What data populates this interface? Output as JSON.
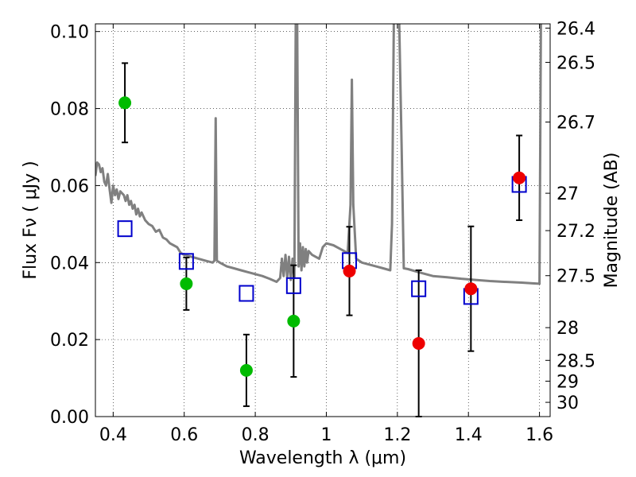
{
  "chart_data": {
    "type": "scatter",
    "xlabel": "Wavelength  λ (μm)",
    "ylabel": "Flux  Fν  ( μJy )",
    "ylabel_right": "Magnitude (AB)",
    "xlim": [
      0.35,
      1.63
    ],
    "ylim": [
      0.0,
      0.102
    ],
    "grid": true,
    "x_ticks": [
      0.4,
      0.6,
      0.8,
      1.0,
      1.2,
      1.4,
      1.6
    ],
    "x_tick_labels": [
      "0.4",
      "0.6",
      "0.8",
      "1",
      "1.2",
      "1.4",
      "1.6"
    ],
    "y_ticks": [
      0.0,
      0.02,
      0.04,
      0.06,
      0.08,
      0.1
    ],
    "y_tick_labels": [
      "0.00",
      "0.02",
      "0.04",
      "0.06",
      "0.08",
      "0.10"
    ],
    "right_ticks": [
      {
        "label": "26.4",
        "flux": 0.1009
      },
      {
        "label": "26.5",
        "flux": 0.092
      },
      {
        "label": "26.7",
        "flux": 0.0765
      },
      {
        "label": "27",
        "flux": 0.058
      },
      {
        "label": "27.2",
        "flux": 0.0483
      },
      {
        "label": "27.5",
        "flux": 0.0366
      },
      {
        "label": "28",
        "flux": 0.0231
      },
      {
        "label": "28.5",
        "flux": 0.0146
      },
      {
        "label": "29",
        "flux": 0.0092
      },
      {
        "label": "30",
        "flux": 0.0037
      }
    ],
    "series": [
      {
        "marker": "circle",
        "color": "#00bb00",
        "points": [
          {
            "x": 0.433,
            "y": 0.0815,
            "err": 0.0103
          },
          {
            "x": 0.606,
            "y": 0.0345,
            "err": 0.0068
          },
          {
            "x": 0.775,
            "y": 0.012,
            "err": 0.0093
          },
          {
            "x": 0.908,
            "y": 0.0248,
            "err": 0.0145
          }
        ]
      },
      {
        "marker": "circle",
        "color": "#ee0000",
        "points": [
          {
            "x": 1.065,
            "y": 0.0378,
            "err": 0.0115
          },
          {
            "x": 1.26,
            "y": 0.019,
            "err": 0.019
          },
          {
            "x": 1.407,
            "y": 0.0332,
            "err": 0.0162
          },
          {
            "x": 1.543,
            "y": 0.062,
            "err": 0.011
          }
        ]
      },
      {
        "marker": "square",
        "color": "#0000cc",
        "points": [
          {
            "x": 0.433,
            "y": 0.0488
          },
          {
            "x": 0.606,
            "y": 0.0403
          },
          {
            "x": 0.775,
            "y": 0.032
          },
          {
            "x": 0.908,
            "y": 0.034
          },
          {
            "x": 1.065,
            "y": 0.0405
          },
          {
            "x": 1.26,
            "y": 0.0332
          },
          {
            "x": 1.407,
            "y": 0.0312
          },
          {
            "x": 1.543,
            "y": 0.0603
          }
        ]
      },
      {
        "marker": "line",
        "color": "#808080",
        "points": [
          [
            0.35,
            0.0625
          ],
          [
            0.355,
            0.066
          ],
          [
            0.36,
            0.0655
          ],
          [
            0.365,
            0.0635
          ],
          [
            0.37,
            0.0645
          ],
          [
            0.375,
            0.061
          ],
          [
            0.38,
            0.06
          ],
          [
            0.385,
            0.063
          ],
          [
            0.39,
            0.059
          ],
          [
            0.395,
            0.0555
          ],
          [
            0.4,
            0.06
          ],
          [
            0.405,
            0.0575
          ],
          [
            0.41,
            0.059
          ],
          [
            0.415,
            0.0565
          ],
          [
            0.42,
            0.0585
          ],
          [
            0.425,
            0.058
          ],
          [
            0.43,
            0.0575
          ],
          [
            0.435,
            0.056
          ],
          [
            0.44,
            0.0575
          ],
          [
            0.445,
            0.055
          ],
          [
            0.45,
            0.056
          ],
          [
            0.455,
            0.054
          ],
          [
            0.46,
            0.055
          ],
          [
            0.465,
            0.0525
          ],
          [
            0.47,
            0.054
          ],
          [
            0.475,
            0.052
          ],
          [
            0.48,
            0.053
          ],
          [
            0.49,
            0.051
          ],
          [
            0.5,
            0.05
          ],
          [
            0.51,
            0.0495
          ],
          [
            0.52,
            0.048
          ],
          [
            0.53,
            0.0485
          ],
          [
            0.54,
            0.0465
          ],
          [
            0.55,
            0.046
          ],
          [
            0.56,
            0.045
          ],
          [
            0.57,
            0.0445
          ],
          [
            0.58,
            0.044
          ],
          [
            0.59,
            0.0425
          ],
          [
            0.6,
            0.042
          ],
          [
            0.62,
            0.0415
          ],
          [
            0.64,
            0.041
          ],
          [
            0.66,
            0.0405
          ],
          [
            0.68,
            0.04
          ],
          [
            0.685,
            0.0405
          ],
          [
            0.6885,
            0.0775
          ],
          [
            0.692,
            0.0405
          ],
          [
            0.7,
            0.04
          ],
          [
            0.72,
            0.039
          ],
          [
            0.74,
            0.0385
          ],
          [
            0.76,
            0.038
          ],
          [
            0.78,
            0.0375
          ],
          [
            0.8,
            0.037
          ],
          [
            0.82,
            0.0365
          ],
          [
            0.84,
            0.0358
          ],
          [
            0.86,
            0.035
          ],
          [
            0.87,
            0.036
          ],
          [
            0.875,
            0.041
          ],
          [
            0.88,
            0.0365
          ],
          [
            0.885,
            0.042
          ],
          [
            0.89,
            0.036
          ],
          [
            0.895,
            0.0415
          ],
          [
            0.9,
            0.0355
          ],
          [
            0.905,
            0.041
          ],
          [
            0.91,
            0.036
          ],
          [
            0.914,
            0.103
          ],
          [
            0.918,
            0.103
          ],
          [
            0.922,
            0.039
          ],
          [
            0.926,
            0.045
          ],
          [
            0.93,
            0.038
          ],
          [
            0.934,
            0.044
          ],
          [
            0.938,
            0.039
          ],
          [
            0.942,
            0.0435
          ],
          [
            0.946,
            0.04
          ],
          [
            0.95,
            0.043
          ],
          [
            0.96,
            0.042
          ],
          [
            0.98,
            0.041
          ],
          [
            0.99,
            0.044
          ],
          [
            1.0,
            0.045
          ],
          [
            1.02,
            0.0445
          ],
          [
            1.04,
            0.0435
          ],
          [
            1.06,
            0.0425
          ],
          [
            1.068,
            0.055
          ],
          [
            1.072,
            0.0875
          ],
          [
            1.076,
            0.055
          ],
          [
            1.084,
            0.041
          ],
          [
            1.1,
            0.04
          ],
          [
            1.12,
            0.0395
          ],
          [
            1.14,
            0.039
          ],
          [
            1.16,
            0.0385
          ],
          [
            1.18,
            0.038
          ],
          [
            1.185,
            0.05
          ],
          [
            1.19,
            0.103
          ],
          [
            1.205,
            0.103
          ],
          [
            1.212,
            0.07
          ],
          [
            1.218,
            0.0385
          ],
          [
            1.23,
            0.0383
          ],
          [
            1.26,
            0.0375
          ],
          [
            1.3,
            0.0365
          ],
          [
            1.34,
            0.0362
          ],
          [
            1.38,
            0.0358
          ],
          [
            1.42,
            0.0355
          ],
          [
            1.46,
            0.0352
          ],
          [
            1.5,
            0.035
          ],
          [
            1.55,
            0.0348
          ],
          [
            1.58,
            0.0346
          ],
          [
            1.6,
            0.0345
          ],
          [
            1.604,
            0.103
          ],
          [
            1.608,
            0.103
          ]
        ]
      }
    ]
  }
}
